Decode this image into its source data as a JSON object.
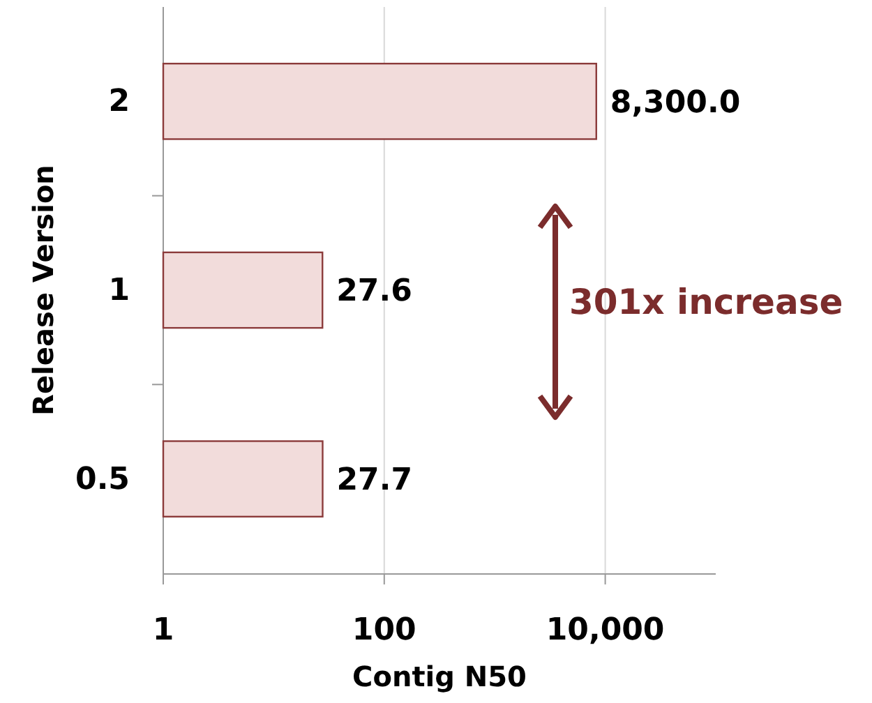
{
  "chart_data": {
    "type": "bar",
    "orientation": "horizontal",
    "categories": [
      "2",
      "1",
      "0.5"
    ],
    "values": [
      8300.0,
      27.6,
      27.7
    ],
    "value_labels": [
      "8,300.0",
      "27.6",
      "27.7"
    ],
    "color": "#f2dcdb",
    "log": "x",
    "xlim": [
      1,
      100000
    ],
    "xticks": [
      1,
      {
        "value": 100,
        "label": "100"
      },
      {
        "value": 10000,
        "label": "10,000"
      }
    ],
    "xlabel": "Contig N50",
    "ylabel": "Release Version",
    "grid": "x",
    "annotations": [
      "301x increase"
    ]
  }
}
